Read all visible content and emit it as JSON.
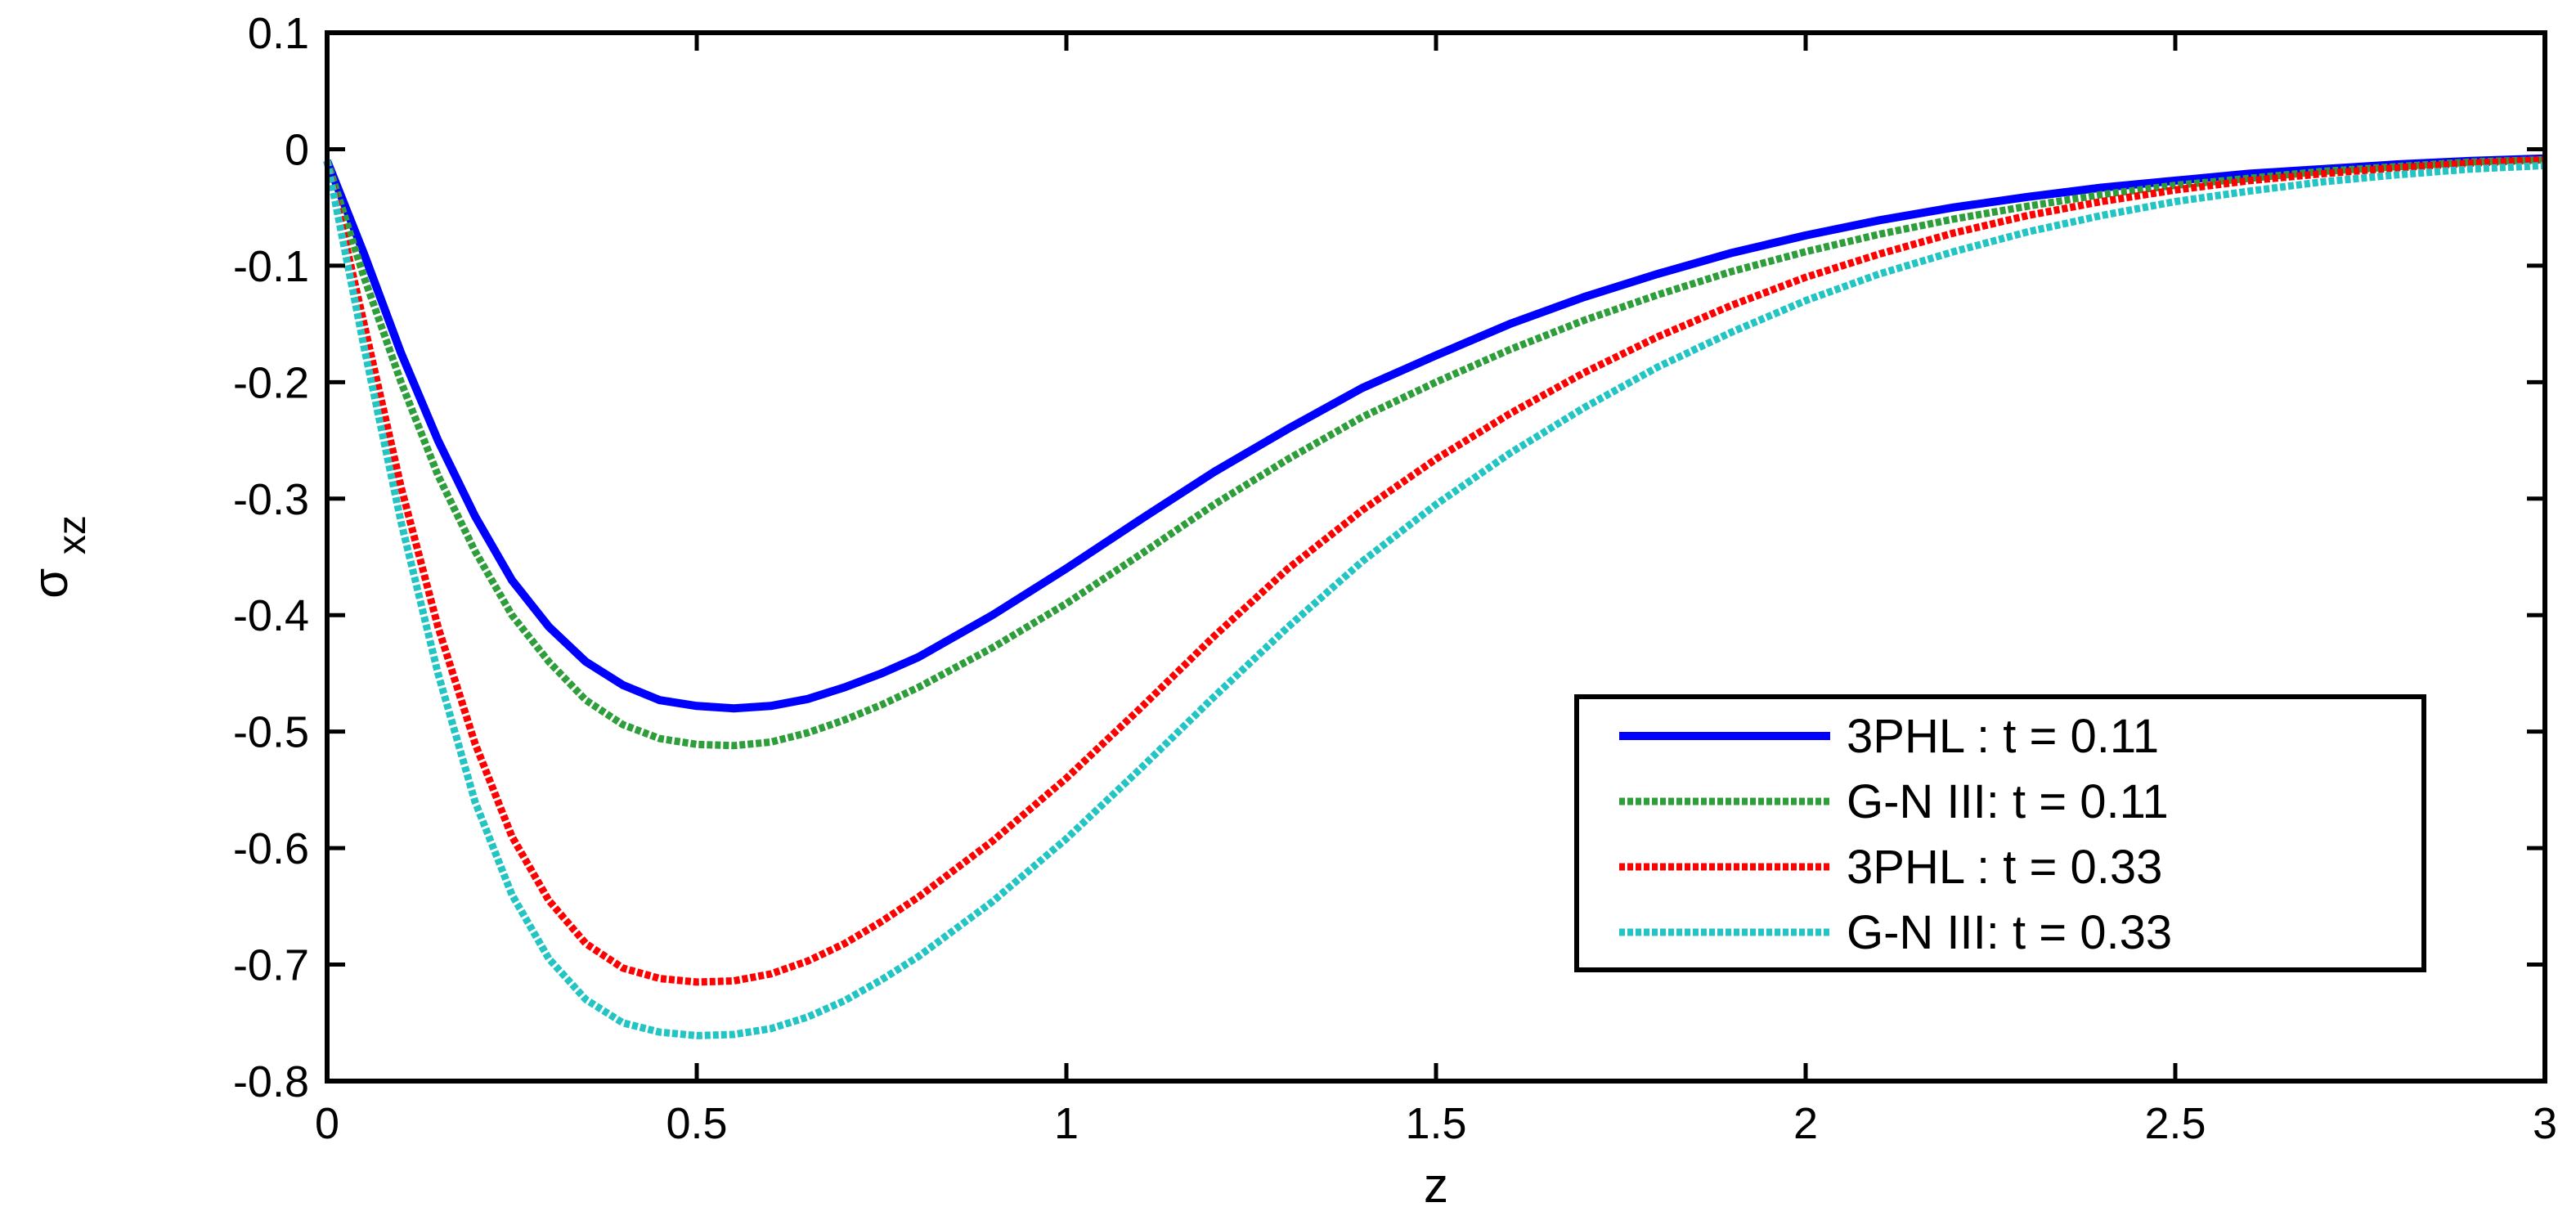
{
  "chart_data": {
    "type": "line",
    "xlabel": "z",
    "ylabel_main": "σ",
    "ylabel_sub": "xz",
    "xlim": [
      0,
      3
    ],
    "ylim": [
      -0.8,
      0.1
    ],
    "xticks": [
      0,
      0.5,
      1,
      1.5,
      2,
      2.5,
      3
    ],
    "xtick_labels": [
      "0",
      "0.5",
      "1",
      "1.5",
      "2",
      "2.5",
      "3"
    ],
    "yticks": [
      0.1,
      0,
      -0.1,
      -0.2,
      -0.3,
      -0.4,
      -0.5,
      -0.6,
      -0.7,
      -0.8
    ],
    "ytick_labels": [
      "0.1",
      "0",
      "-0.1",
      "-0.2",
      "-0.3",
      "-0.4",
      "-0.5",
      "-0.6",
      "-0.7",
      "-0.8"
    ],
    "grid": false,
    "legend_position": "bottom-right",
    "x": [
      0,
      0.05,
      0.1,
      0.15,
      0.2,
      0.25,
      0.3,
      0.35,
      0.4,
      0.45,
      0.5,
      0.55,
      0.6,
      0.65,
      0.7,
      0.75,
      0.8,
      0.9,
      1.0,
      1.1,
      1.2,
      1.3,
      1.4,
      1.5,
      1.6,
      1.7,
      1.8,
      1.9,
      2.0,
      2.1,
      2.2,
      2.3,
      2.4,
      2.5,
      2.6,
      2.7,
      2.8,
      2.9,
      3.0
    ],
    "series": [
      {
        "name": "3PHL : t = 0.11",
        "color": "#0000ff",
        "style": "solid",
        "values": [
          -0.01,
          -0.09,
          -0.175,
          -0.25,
          -0.315,
          -0.37,
          -0.41,
          -0.44,
          -0.46,
          -0.473,
          -0.478,
          -0.48,
          -0.478,
          -0.472,
          -0.462,
          -0.45,
          -0.436,
          -0.4,
          -0.36,
          -0.318,
          -0.277,
          -0.24,
          -0.205,
          -0.177,
          -0.15,
          -0.127,
          -0.107,
          -0.089,
          -0.074,
          -0.061,
          -0.05,
          -0.041,
          -0.033,
          -0.027,
          -0.021,
          -0.017,
          -0.013,
          -0.01,
          -0.008
        ]
      },
      {
        "name": "G-N III: t = 0.11",
        "color": "#2e9e3a",
        "style": "dotted",
        "values": [
          -0.01,
          -0.11,
          -0.2,
          -0.28,
          -0.345,
          -0.4,
          -0.44,
          -0.473,
          -0.494,
          -0.506,
          -0.511,
          -0.512,
          -0.509,
          -0.501,
          -0.49,
          -0.477,
          -0.462,
          -0.428,
          -0.39,
          -0.348,
          -0.305,
          -0.266,
          -0.23,
          -0.2,
          -0.172,
          -0.147,
          -0.125,
          -0.105,
          -0.088,
          -0.073,
          -0.06,
          -0.049,
          -0.039,
          -0.031,
          -0.025,
          -0.019,
          -0.015,
          -0.011,
          -0.009
        ]
      },
      {
        "name": "3PHL : t = 0.33",
        "color": "#ff0000",
        "style": "dotted",
        "values": [
          -0.01,
          -0.15,
          -0.29,
          -0.41,
          -0.51,
          -0.59,
          -0.645,
          -0.682,
          -0.703,
          -0.712,
          -0.715,
          -0.714,
          -0.708,
          -0.697,
          -0.682,
          -0.663,
          -0.642,
          -0.594,
          -0.54,
          -0.48,
          -0.418,
          -0.36,
          -0.31,
          -0.266,
          -0.227,
          -0.192,
          -0.161,
          -0.134,
          -0.11,
          -0.09,
          -0.072,
          -0.057,
          -0.045,
          -0.035,
          -0.027,
          -0.021,
          -0.016,
          -0.012,
          -0.009
        ]
      },
      {
        "name": "G-N III: t = 0.33",
        "color": "#22c4c4",
        "style": "dotted",
        "values": [
          -0.01,
          -0.17,
          -0.32,
          -0.45,
          -0.56,
          -0.64,
          -0.695,
          -0.73,
          -0.75,
          -0.758,
          -0.761,
          -0.76,
          -0.755,
          -0.745,
          -0.731,
          -0.713,
          -0.693,
          -0.646,
          -0.592,
          -0.532,
          -0.47,
          -0.41,
          -0.354,
          -0.305,
          -0.261,
          -0.222,
          -0.187,
          -0.157,
          -0.13,
          -0.107,
          -0.088,
          -0.071,
          -0.057,
          -0.045,
          -0.036,
          -0.028,
          -0.022,
          -0.017,
          -0.014
        ]
      }
    ]
  }
}
